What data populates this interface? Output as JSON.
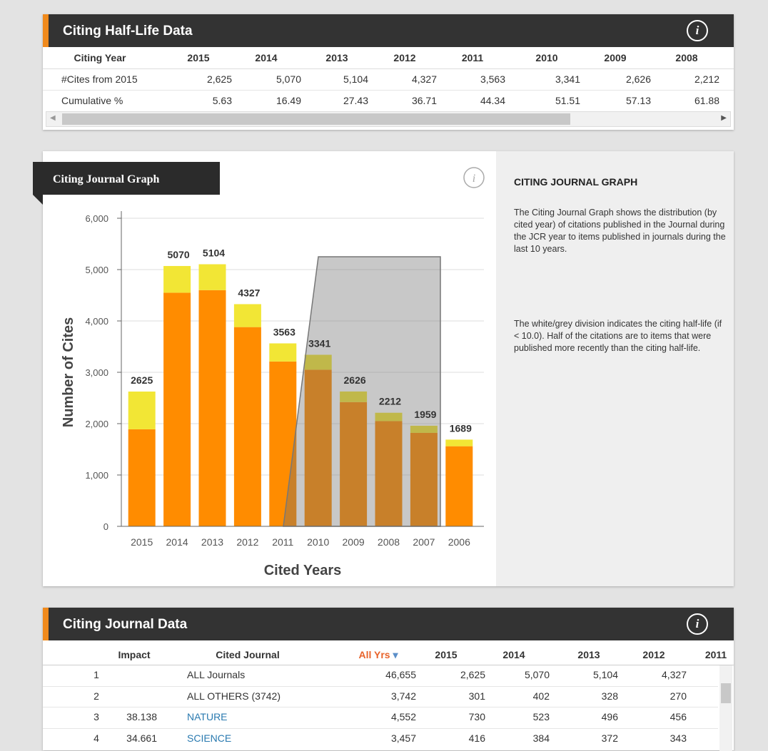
{
  "half_life_table": {
    "title": "Citing Half-Life Data",
    "header": [
      "Citing Year",
      "2015",
      "2014",
      "2013",
      "2012",
      "2011",
      "2010",
      "2009",
      "2008"
    ],
    "rows": [
      [
        "#Cites from 2015",
        "2,625",
        "5,070",
        "5,104",
        "4,327",
        "3,563",
        "3,341",
        "2,626",
        "2,212"
      ],
      [
        "Cumulative %",
        "5.63",
        "16.49",
        "27.43",
        "36.71",
        "44.34",
        "51.51",
        "57.13",
        "61.88"
      ]
    ]
  },
  "chart_data": {
    "type": "bar",
    "stacked": true,
    "title": "Citing Journal Graph",
    "xlabel": "Cited Years",
    "ylabel": "Number of Cites",
    "categories": [
      "2015",
      "2014",
      "2013",
      "2012",
      "2011",
      "2010",
      "2009",
      "2008",
      "2007",
      "2006"
    ],
    "series": [
      {
        "color": "#ff8c00",
        "values": [
          1890,
          4550,
          4600,
          3880,
          3210,
          3050,
          2420,
          2050,
          1820,
          1560
        ]
      },
      {
        "color": "#f2e635",
        "values": [
          735,
          520,
          504,
          447,
          353,
          291,
          206,
          162,
          139,
          129
        ]
      }
    ],
    "totals": [
      2625,
      5070,
      5104,
      4327,
      3563,
      3341,
      2626,
      2212,
      1959,
      1689
    ],
    "ylim": [
      0,
      6000
    ],
    "yticks": [
      0,
      {
        "value": 1000,
        "label": "1,000"
      },
      {
        "value": 2000,
        "label": "2,000"
      },
      {
        "value": 3000,
        "label": "3,000"
      },
      {
        "value": 4000,
        "label": "4,000"
      },
      {
        "value": 5000,
        "label": "5,000"
      },
      {
        "value": 6000,
        "label": "6,000"
      }
    ]
  },
  "side_panel": {
    "heading": "CITING JOURNAL GRAPH",
    "paragraphs": [
      "The Citing Journal Graph shows the distribution (by cited year) of citations published in the Journal during the JCR year to items published in journals during the last 10 years.",
      "The white/grey division indicates the citing half-life (if < 10.0). Half of the citations are to items that were published more recently than the citing half-life."
    ]
  },
  "journal_table": {
    "title": "Citing Journal Data",
    "header": [
      "Impact",
      "Cited Journal",
      "All Yrs",
      "2015",
      "2014",
      "2013",
      "2012",
      "2011"
    ],
    "rows": [
      {
        "rank": "1",
        "journal": "ALL Journals",
        "values": [
          "46,655",
          "2,625",
          "5,070",
          "5,104",
          "4,327"
        ]
      },
      {
        "rank": "2",
        "journal": "ALL OTHERS (3742)",
        "values": [
          "3,742",
          "301",
          "402",
          "328",
          "270"
        ]
      },
      {
        "rank": "3",
        "impact": "38.138",
        "journal": "NATURE",
        "values": [
          "4,552",
          "730",
          "523",
          "496",
          "456"
        ]
      },
      {
        "rank": "4",
        "impact": "34.661",
        "journal": "SCIENCE",
        "values": [
          "3,457",
          "416",
          "384",
          "372",
          "343"
        ]
      }
    ]
  }
}
